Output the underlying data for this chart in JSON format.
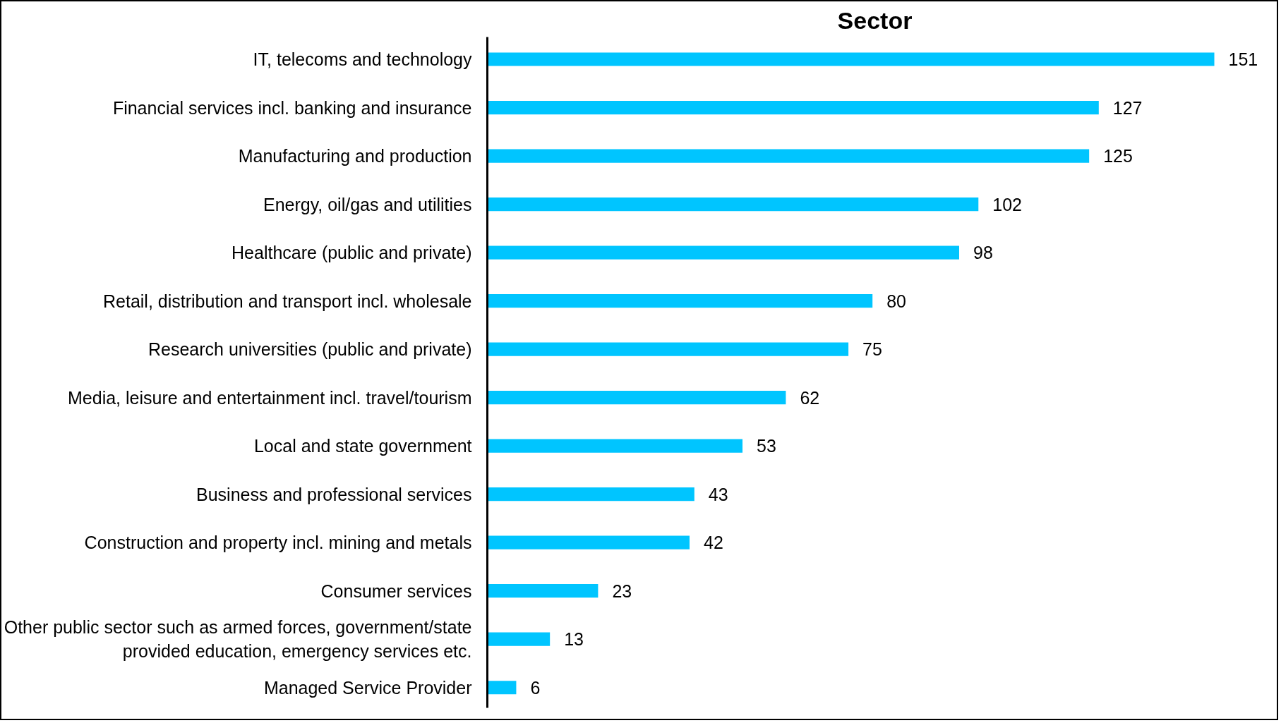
{
  "chart_data": {
    "type": "bar",
    "orientation": "horizontal",
    "title": "Sector",
    "categories": [
      "IT, telecoms and technology",
      "Financial services incl. banking and insurance",
      "Manufacturing and production",
      "Energy, oil/gas and utilities",
      "Healthcare (public and private)",
      "Retail, distribution and transport incl. wholesale",
      "Research universities (public and private)",
      "Media, leisure and entertainment incl. travel/tourism",
      "Local and state government",
      "Business and professional services",
      "Construction and property incl. mining and metals",
      "Consumer services",
      "Other public sector such as armed forces, government/state\nprovided education, emergency services etc.",
      "Managed Service Provider"
    ],
    "values": [
      151,
      127,
      125,
      102,
      98,
      80,
      75,
      62,
      53,
      43,
      42,
      23,
      13,
      6
    ],
    "color": "#00c5ff",
    "data_labels": true
  }
}
